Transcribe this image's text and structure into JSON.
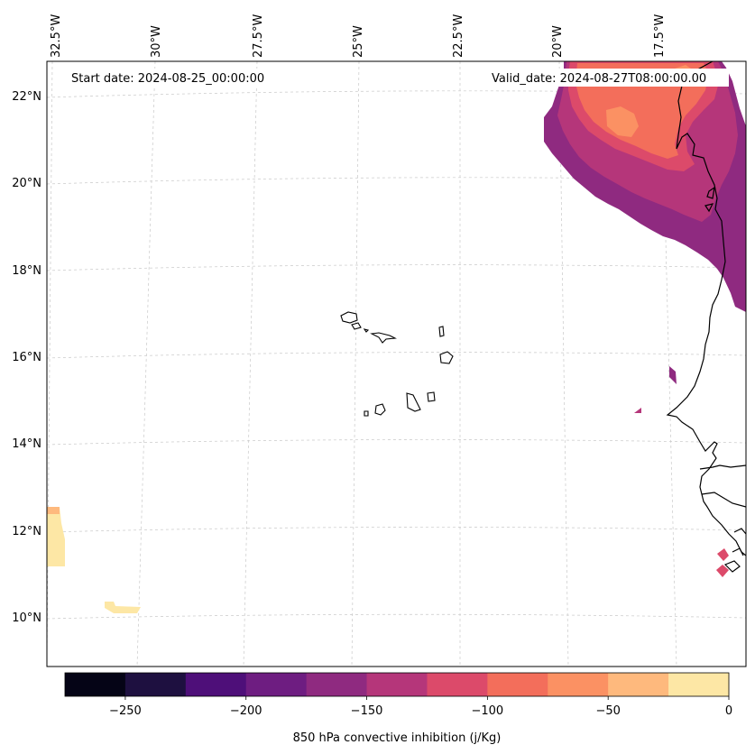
{
  "map": {
    "start_label": "Start date: 2024-08-25_00:00:00",
    "valid_label": "Valid_date: 2024-08-27T08:00:00.00",
    "lon_labels": [
      "32.5°W",
      "30°W",
      "27.5°W",
      "25°W",
      "22.5°W",
      "20°W",
      "17.5°W"
    ],
    "lat_labels": [
      "22°N",
      "20°N",
      "18°N",
      "16°N",
      "14°N",
      "12°N",
      "10°N"
    ]
  },
  "colorbar": {
    "title": "850 hPa convective inhibition (j/Kg)",
    "tick_labels": [
      "−250",
      "−200",
      "−150",
      "−100",
      "−50",
      "0"
    ],
    "levels": [
      -275,
      -250,
      -225,
      -200,
      -175,
      -150,
      -125,
      -100,
      -75,
      -50,
      -25,
      0
    ],
    "colors": [
      "#050416",
      "#1e1040",
      "#4e0f79",
      "#6e1d81",
      "#8f2a80",
      "#b5367a",
      "#dc4a6a",
      "#f36e5b",
      "#fb9163",
      "#feb97d",
      "#fde7a5"
    ]
  }
}
